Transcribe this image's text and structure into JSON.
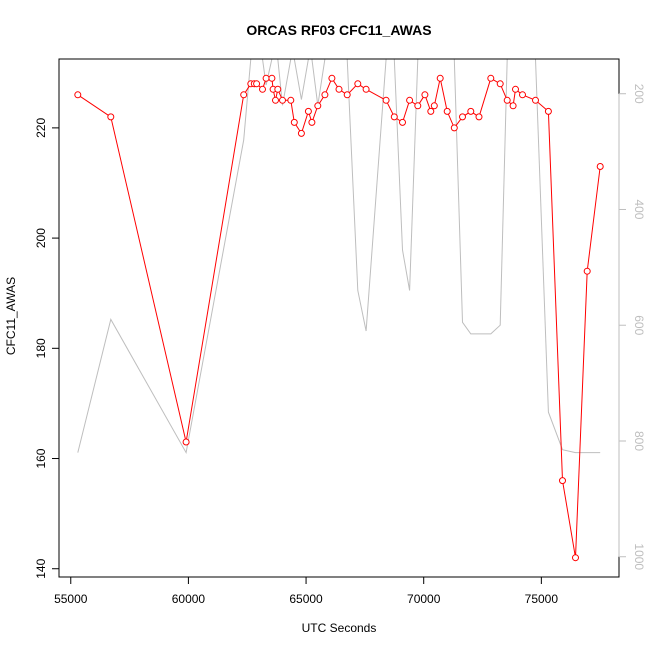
{
  "chart_data": {
    "type": "line",
    "title": "ORCAS RF03 CFC11_AWAS",
    "xlabel": "UTC Seconds",
    "ylabel": "CFC11_AWAS",
    "xlim": [
      54500,
      78300
    ],
    "ylim": [
      138.5,
      232.5
    ],
    "y2lim": [
      1035,
      140
    ],
    "x_ticks": [
      55000,
      60000,
      65000,
      70000,
      75000
    ],
    "y_ticks": [
      140,
      160,
      180,
      200,
      220
    ],
    "y2_ticks": [
      200,
      400,
      600,
      800,
      1000
    ],
    "x_tick_labels": [
      "55000",
      "60000",
      "65000",
      "70000",
      "75000"
    ],
    "y_tick_labels": [
      "140",
      "160",
      "180",
      "200",
      "220"
    ],
    "y2_tick_labels": [
      "200",
      "400",
      "600",
      "800",
      "1000"
    ],
    "grid": false,
    "legend": "none",
    "series": [
      {
        "role": "primary",
        "color": "#ff0000",
        "marker": "open-circle",
        "x": [
          55300,
          56700,
          59900,
          62350,
          62650,
          62800,
          62900,
          63150,
          63300,
          63550,
          63600,
          63700,
          63800,
          64000,
          64350,
          64500,
          64800,
          65100,
          65250,
          65500,
          65800,
          66100,
          66400,
          66750,
          67200,
          67550,
          68400,
          68750,
          69100,
          69400,
          69750,
          70050,
          70300,
          70450,
          70700,
          71000,
          71300,
          71650,
          72000,
          72350,
          72850,
          73250,
          73550,
          73800,
          73900,
          74200,
          74750,
          75300,
          75900,
          76450,
          76950,
          77500
        ],
        "y": [
          226,
          222,
          163,
          226,
          228,
          228,
          228,
          227,
          229,
          229,
          227,
          225,
          227,
          225,
          225,
          221,
          219,
          223,
          221,
          224,
          226,
          229,
          227,
          226,
          228,
          227,
          225,
          222,
          221,
          225,
          224,
          226,
          223,
          224,
          229,
          223,
          220,
          222,
          223,
          222,
          229,
          228,
          225,
          224,
          227,
          226,
          225,
          223,
          156,
          142,
          194,
          213
        ]
      },
      {
        "role": "secondary",
        "color": "#bebebe",
        "marker": "none",
        "x": [
          55300,
          56700,
          59900,
          62350,
          62650,
          62800,
          62900,
          63150,
          63300,
          63550,
          63600,
          63700,
          63800,
          64000,
          64350,
          64500,
          64800,
          65100,
          65250,
          65500,
          65800,
          66100,
          66400,
          66750,
          67200,
          67550,
          68400,
          68750,
          69100,
          69400,
          69750,
          70050,
          70300,
          70450,
          70700,
          71000,
          71300,
          71650,
          72000,
          72350,
          72850,
          73250,
          73550,
          73800,
          73900,
          74200,
          74750,
          75300,
          75900,
          76450,
          76950,
          77500
        ],
        "y": [
          820,
          590,
          820,
          280,
          140,
          140,
          140,
          140,
          185,
          140,
          140,
          140,
          140,
          220,
          140,
          140,
          210,
          140,
          140,
          220,
          140,
          140,
          140,
          140,
          540,
          610,
          140,
          140,
          470,
          540,
          140,
          140,
          140,
          140,
          140,
          140,
          140,
          595,
          615,
          615,
          615,
          600,
          140,
          140,
          140,
          140,
          140,
          750,
          815,
          820,
          820,
          820
        ]
      }
    ]
  }
}
